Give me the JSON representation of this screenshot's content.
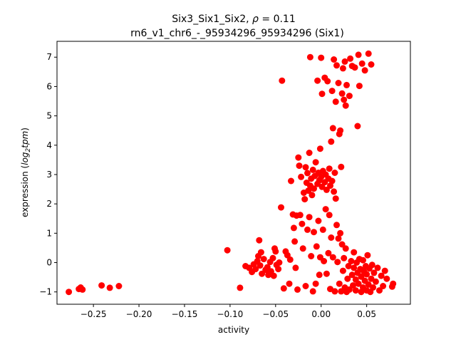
{
  "chart_data": {
    "type": "scatter",
    "title": "Six3_Six1_Six2, ρ = 0.11",
    "subtitle": "rn6_v1_chr6_-_95934296_95934296 (Six1)",
    "xlabel": "activity",
    "ylabel": "expression (log₂tpm)",
    "xlim": [
      -0.29,
      0.098
    ],
    "ylim": [
      -1.42,
      7.54
    ],
    "xticks": [
      -0.25,
      -0.2,
      -0.15,
      -0.1,
      -0.05,
      0.0,
      0.05
    ],
    "xtick_labels": [
      "−0.25",
      "−0.20",
      "−0.15",
      "−0.10",
      "−0.05",
      "0.00",
      "0.05"
    ],
    "yticks": [
      -1,
      0,
      1,
      2,
      3,
      4,
      5,
      6,
      7
    ],
    "ytick_labels": [
      "−1",
      "0",
      "1",
      "2",
      "3",
      "4",
      "5",
      "6",
      "7"
    ],
    "grid": false,
    "color": "#ff0000",
    "series": [
      {
        "points": [
          [
            -0.277,
            -1.0
          ],
          [
            -0.266,
            -0.9
          ],
          [
            -0.264,
            -0.85
          ],
          [
            -0.262,
            -0.92
          ],
          [
            -0.241,
            -0.78
          ],
          [
            -0.232,
            -0.86
          ],
          [
            -0.222,
            -0.8
          ],
          [
            -0.103,
            0.42
          ],
          [
            -0.089,
            -0.86
          ],
          [
            -0.083,
            -0.12
          ],
          [
            -0.079,
            -0.18
          ],
          [
            -0.076,
            -0.32
          ],
          [
            -0.074,
            -0.06
          ],
          [
            -0.072,
            -0.22
          ],
          [
            -0.07,
            0.05
          ],
          [
            -0.069,
            0.22
          ],
          [
            -0.068,
            0.76
          ],
          [
            -0.067,
            -0.1
          ],
          [
            -0.066,
            0.35
          ],
          [
            -0.065,
            -0.38
          ],
          [
            -0.063,
            0.12
          ],
          [
            -0.061,
            -0.25
          ],
          [
            -0.059,
            -0.16
          ],
          [
            -0.058,
            -0.42
          ],
          [
            -0.056,
            0.02
          ],
          [
            -0.055,
            -0.3
          ],
          [
            -0.053,
            0.15
          ],
          [
            -0.052,
            -0.45
          ],
          [
            -0.051,
            0.48
          ],
          [
            -0.05,
            0.38
          ],
          [
            -0.049,
            -0.08
          ],
          [
            -0.047,
            -0.22
          ],
          [
            -0.046,
            0.0
          ],
          [
            -0.044,
            1.88
          ],
          [
            -0.043,
            6.2
          ],
          [
            -0.041,
            -0.88
          ],
          [
            -0.039,
            0.38
          ],
          [
            -0.037,
            0.25
          ],
          [
            -0.035,
            -0.72
          ],
          [
            -0.034,
            0.1
          ],
          [
            -0.033,
            2.78
          ],
          [
            -0.031,
            1.64
          ],
          [
            -0.03,
            1.18
          ],
          [
            -0.029,
            0.72
          ],
          [
            -0.028,
            -0.18
          ],
          [
            -0.027,
            1.6
          ],
          [
            -0.026,
            -0.92
          ],
          [
            -0.025,
            3.58
          ],
          [
            -0.024,
            3.3
          ],
          [
            -0.023,
            1.62
          ],
          [
            -0.022,
            2.92
          ],
          [
            -0.021,
            1.32
          ],
          [
            -0.02,
            0.48
          ],
          [
            -0.019,
            2.38
          ],
          [
            -0.018,
            2.16
          ],
          [
            -0.017,
            3.25
          ],
          [
            -0.017,
            -0.8
          ],
          [
            -0.016,
            2.72
          ],
          [
            -0.015,
            3.05
          ],
          [
            -0.015,
            1.12
          ],
          [
            -0.014,
            2.45
          ],
          [
            -0.013,
            3.74
          ],
          [
            -0.013,
            1.55
          ],
          [
            -0.012,
            2.62
          ],
          [
            -0.012,
            7.0
          ],
          [
            -0.011,
            2.86
          ],
          [
            -0.011,
            0.22
          ],
          [
            -0.01,
            2.3
          ],
          [
            -0.009,
            3.16
          ],
          [
            -0.009,
            -0.98
          ],
          [
            -0.008,
            2.52
          ],
          [
            -0.008,
            1.04
          ],
          [
            -0.007,
            2.95
          ],
          [
            -0.006,
            3.42
          ],
          [
            -0.006,
            -0.72
          ],
          [
            -0.005,
            0.55
          ],
          [
            -0.004,
            2.68
          ],
          [
            -0.004,
            6.2
          ],
          [
            -0.003,
            3.06
          ],
          [
            -0.003,
            1.42
          ],
          [
            -0.002,
            2.8
          ],
          [
            -0.002,
            -0.42
          ],
          [
            -0.001,
            3.88
          ],
          [
            -0.001,
            0.18
          ],
          [
            0.0,
            2.92
          ],
          [
            0.0,
            6.98
          ],
          [
            0.001,
            2.58
          ],
          [
            0.001,
            5.75
          ],
          [
            0.002,
            3.12
          ],
          [
            0.002,
            1.12
          ],
          [
            0.003,
            0.05
          ],
          [
            0.004,
            2.74
          ],
          [
            0.004,
            6.3
          ],
          [
            0.005,
            3.0
          ],
          [
            0.005,
            1.82
          ],
          [
            0.006,
            2.48
          ],
          [
            0.006,
            -0.38
          ],
          [
            0.007,
            6.18
          ],
          [
            0.008,
            2.86
          ],
          [
            0.008,
            0.32
          ],
          [
            0.009,
            3.2
          ],
          [
            0.009,
            1.62
          ],
          [
            0.01,
            2.62
          ],
          [
            0.01,
            -0.9
          ],
          [
            0.011,
            4.12
          ],
          [
            0.011,
            0.85
          ],
          [
            0.012,
            2.78
          ],
          [
            0.012,
            5.85
          ],
          [
            0.013,
            4.58
          ],
          [
            0.013,
            0.18
          ],
          [
            0.014,
            2.42
          ],
          [
            0.014,
            6.92
          ],
          [
            0.015,
            3.06
          ],
          [
            0.015,
            -0.98
          ],
          [
            0.016,
            2.18
          ],
          [
            0.016,
            5.48
          ],
          [
            0.017,
            6.72
          ],
          [
            0.017,
            1.28
          ],
          [
            0.018,
            0.02
          ],
          [
            0.019,
            0.82
          ],
          [
            0.019,
            6.12
          ],
          [
            0.02,
            4.38
          ],
          [
            0.02,
            -0.72
          ],
          [
            0.021,
            4.5
          ],
          [
            0.021,
            1.0
          ],
          [
            0.022,
            3.26
          ],
          [
            0.022,
            -0.98
          ],
          [
            0.023,
            5.76
          ],
          [
            0.023,
            0.62
          ],
          [
            0.024,
            6.62
          ],
          [
            0.024,
            -0.28
          ],
          [
            0.025,
            5.55
          ],
          [
            0.025,
            0.15
          ],
          [
            0.026,
            6.85
          ],
          [
            0.026,
            -0.85
          ],
          [
            0.027,
            5.35
          ],
          [
            0.027,
            0.48
          ],
          [
            0.028,
            6.05
          ],
          [
            0.028,
            -1.0
          ],
          [
            0.029,
            -0.55
          ],
          [
            0.03,
            -0.12
          ],
          [
            0.031,
            5.68
          ],
          [
            0.031,
            -0.92
          ],
          [
            0.032,
            6.95
          ],
          [
            0.033,
            0.05
          ],
          [
            0.034,
            6.7
          ],
          [
            0.034,
            -0.42
          ],
          [
            0.035,
            -0.78
          ],
          [
            0.036,
            0.35
          ],
          [
            0.036,
            -0.18
          ],
          [
            0.037,
            6.65
          ],
          [
            0.038,
            -0.95
          ],
          [
            0.038,
            -0.58
          ],
          [
            0.039,
            0.0
          ],
          [
            0.04,
            4.65
          ],
          [
            0.04,
            -0.35
          ],
          [
            0.041,
            7.08
          ],
          [
            0.041,
            -0.72
          ],
          [
            0.042,
            6.02
          ],
          [
            0.042,
            0.12
          ],
          [
            0.043,
            -0.22
          ],
          [
            0.044,
            -1.0
          ],
          [
            0.044,
            -0.48
          ],
          [
            0.045,
            6.78
          ],
          [
            0.046,
            -0.85
          ],
          [
            0.046,
            0.08
          ],
          [
            0.047,
            -0.3
          ],
          [
            0.048,
            6.55
          ],
          [
            0.048,
            -0.62
          ],
          [
            0.049,
            -0.12
          ],
          [
            0.05,
            -0.95
          ],
          [
            0.05,
            -0.4
          ],
          [
            0.051,
            0.25
          ],
          [
            0.052,
            7.12
          ],
          [
            0.052,
            -0.75
          ],
          [
            0.053,
            -0.2
          ],
          [
            0.054,
            -1.0
          ],
          [
            0.055,
            6.75
          ],
          [
            0.055,
            -0.55
          ],
          [
            0.056,
            -0.08
          ],
          [
            0.057,
            -0.85
          ],
          [
            0.058,
            -0.35
          ],
          [
            0.06,
            -0.65
          ],
          [
            0.062,
            -0.18
          ],
          [
            0.064,
            -0.95
          ],
          [
            0.066,
            -0.45
          ],
          [
            0.068,
            -0.8
          ],
          [
            0.07,
            -0.28
          ],
          [
            0.072,
            -0.55
          ],
          [
            0.078,
            -0.82
          ],
          [
            0.079,
            -0.72
          ]
        ]
      }
    ]
  }
}
